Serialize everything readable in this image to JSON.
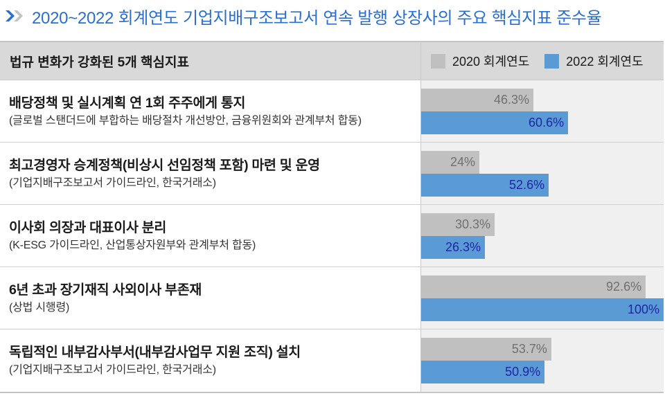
{
  "title": "2020~2022 회계연도 기업지배구조보고서 연속 발행 상장사의 주요 핵심지표 준수율",
  "icons": {
    "title_marker": "double-chevron-right-icon"
  },
  "colors": {
    "title": "#2a6fcf",
    "chevron_primary": "#2a6fcf",
    "chevron_secondary": "#c2c2c2",
    "series_2020": "#c0c0c0",
    "series_2022": "#5b9bd5",
    "label_2020": "#6f6f6f",
    "label_2022": "#1f23a6",
    "header_bg": "#d9d9d9",
    "chart_bg": "#f0f0f0"
  },
  "header": {
    "left_label": "법규 변화가 강화된 5개 핵심지표",
    "legend": [
      {
        "label": "2020 회계연도",
        "color": "#c0c0c0"
      },
      {
        "label": "2022 회계연도",
        "color": "#5b9bd5"
      }
    ]
  },
  "rows": [
    {
      "title": "배당정책 및 실시계획 연 1회 주주에게 통지",
      "source": "(글로벌 스탠더드에 부합하는 배당절차 개선방안, 금융위원회와 관계부처 합동)",
      "v2020": 46.3,
      "l2020": "46.3%",
      "v2022": 60.6,
      "l2022": "60.6%"
    },
    {
      "title": "최고경영자 승계정책(비상시 선임정책 포함) 마련 및 운영",
      "source": "(기업지배구조보고서 가이드라인, 한국거래소)",
      "v2020": 24,
      "l2020": "24%",
      "v2022": 52.6,
      "l2022": "52.6%"
    },
    {
      "title": "이사회 의장과 대표이사 분리",
      "source": "(K-ESG 가이드라인, 산업통상자원부와 관계부처 합동)",
      "v2020": 30.3,
      "l2020": "30.3%",
      "v2022": 26.3,
      "l2022": "26.3%"
    },
    {
      "title": "6년 초과 장기재직 사외이사 부존재",
      "source": "(상법 시행령)",
      "v2020": 92.6,
      "l2020": "92.6%",
      "v2022": 100,
      "l2022": "100%"
    },
    {
      "title": "독립적인 내부감사부서(내부감사업무 지원 조직) 설치",
      "source": "(기업지배구조보고서 가이드라인, 한국거래소)",
      "v2020": 53.7,
      "l2020": "53.7%",
      "v2022": 50.9,
      "l2022": "50.9%"
    }
  ],
  "chart_data": {
    "type": "bar",
    "orientation": "horizontal",
    "title": "2020~2022 회계연도 기업지배구조보고서 연속 발행 상장사의 주요 핵심지표 준수율",
    "categories": [
      "배당정책 및 실시계획 연 1회 주주에게 통지",
      "최고경영자 승계정책(비상시 선임정책 포함) 마련 및 운영",
      "이사회 의장과 대표이사 분리",
      "6년 초과 장기재직 사외이사 부존재",
      "독립적인 내부감사부서(내부감사업무 지원 조직) 설치"
    ],
    "series": [
      {
        "name": "2020 회계연도",
        "values": [
          46.3,
          24,
          30.3,
          92.6,
          53.7
        ],
        "color": "#c0c0c0"
      },
      {
        "name": "2022 회계연도",
        "values": [
          60.6,
          52.6,
          26.3,
          100,
          50.9
        ],
        "color": "#5b9bd5"
      }
    ],
    "unit": "%",
    "xlim": [
      0,
      100
    ],
    "xlabel": "",
    "ylabel": "법규 변화가 강화된 5개 핵심지표",
    "grid": false,
    "legend_position": "top-right",
    "data_labels": true
  }
}
